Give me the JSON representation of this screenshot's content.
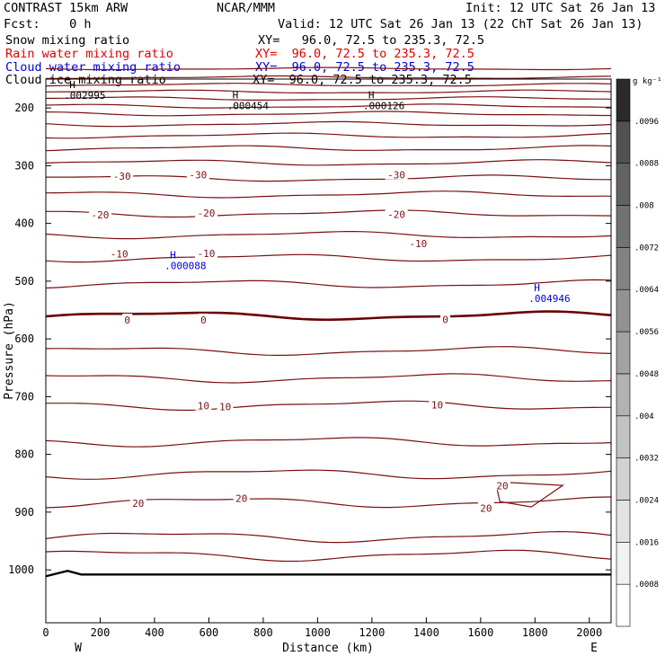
{
  "header": {
    "line1_left": "CONTRAST 15km ARW",
    "line1_center": "NCAR/MMM",
    "line1_right": "Init: 12 UTC Sat 26 Jan 13",
    "line2_left": "Fcst:    0 h",
    "line2_right": "Valid: 12 UTC Sat 26 Jan 13 (22 ChT Sat 26 Jan 13)",
    "fields": [
      {
        "name": "Snow mixing ratio",
        "xy": "XY=   96.0, 72.5 to 235.3, 72.5",
        "color": "#000000"
      },
      {
        "name": "Rain water mixing ratio",
        "xy": "XY=  96.0, 72.5 to 235.3, 72.5",
        "color": "#e00000"
      },
      {
        "name": "Cloud water mixing ratio",
        "xy": "XY=  96.0, 72.5 to 235.3, 72.5",
        "color": "#0000d8"
      },
      {
        "name": "Cloud ice mixing ratio",
        "xy": "XY=  96.0, 72.5 to 235.3, 72.5",
        "color": "#000000"
      }
    ]
  },
  "chart_data": {
    "type": "cross-section contour",
    "xlabel": "Distance (km)",
    "ylabel": "Pressure (hPa)",
    "xlim": [
      0,
      2080
    ],
    "ylim": [
      1050,
      120
    ],
    "xticks": [
      0,
      200,
      400,
      600,
      800,
      1000,
      1200,
      1400,
      1600,
      1800,
      2000
    ],
    "yticks": [
      200,
      300,
      400,
      500,
      600,
      700,
      800,
      900,
      1000
    ],
    "x_endpoints": {
      "left": "W",
      "right": "E"
    },
    "ground_pressure_hPa": 1008,
    "colorbar": {
      "unit": "g kg⁻¹",
      "tick_labels": [
        ".0008",
        ".0016",
        ".0024",
        ".0032",
        ".004",
        ".0048",
        ".0056",
        ".0064",
        ".0072",
        ".008",
        ".0088",
        ".0096"
      ],
      "colors": [
        "#ffffff",
        "#f2f2f2",
        "#e2e2e2",
        "#d2d2d2",
        "#c2c2c2",
        "#b2b2b2",
        "#a2a2a2",
        "#929292",
        "#828282",
        "#727272",
        "#626262",
        "#525252",
        "#2a2a2a"
      ]
    },
    "temperature_contours": {
      "color": "#7a1010",
      "zero_color": "#6a0000",
      "levels_hPa": [
        132,
        147,
        160,
        172,
        184,
        197,
        210,
        228,
        248,
        270,
        295,
        322,
        350,
        383,
        420,
        460,
        505,
        560,
        621,
        668,
        715,
        778,
        834,
        883,
        943,
        975
      ],
      "labels": [
        {
          "text": "-30",
          "x": 280,
          "p": 318
        },
        {
          "text": "-30",
          "x": 560,
          "p": 316
        },
        {
          "text": "-30",
          "x": 1290,
          "p": 316
        },
        {
          "text": "-20",
          "x": 200,
          "p": 385
        },
        {
          "text": "-20",
          "x": 590,
          "p": 382
        },
        {
          "text": "-20",
          "x": 1290,
          "p": 384
        },
        {
          "text": "-10",
          "x": 270,
          "p": 453
        },
        {
          "text": "-10",
          "x": 590,
          "p": 452
        },
        {
          "text": "-10",
          "x": 1370,
          "p": 435
        },
        {
          "text": "0",
          "x": 300,
          "p": 567
        },
        {
          "text": "0",
          "x": 580,
          "p": 567
        },
        {
          "text": "0",
          "x": 1470,
          "p": 566
        },
        {
          "text": "10",
          "x": 580,
          "p": 716
        },
        {
          "text": "10",
          "x": 660,
          "p": 717
        },
        {
          "text": "10",
          "x": 1440,
          "p": 714
        },
        {
          "text": "20",
          "x": 340,
          "p": 885
        },
        {
          "text": "20",
          "x": 720,
          "p": 876
        },
        {
          "text": "20",
          "x": 1620,
          "p": 893
        },
        {
          "text": "20",
          "x": 1680,
          "p": 854
        }
      ]
    },
    "extrema": [
      {
        "symbol": "H",
        "value": ".002995",
        "x": 80,
        "p": 178,
        "color": "#000000"
      },
      {
        "symbol": "H",
        "value": ".000454",
        "x": 680,
        "p": 196,
        "color": "#000000"
      },
      {
        "symbol": "H",
        "value": ".000126",
        "x": 1180,
        "p": 196,
        "color": "#000000"
      },
      {
        "symbol": "H",
        "value": ".000088",
        "x": 450,
        "p": 473,
        "color": "#0000d8"
      },
      {
        "symbol": "H",
        "value": ".004946",
        "x": 1790,
        "p": 530,
        "color": "#0000d8"
      }
    ]
  }
}
